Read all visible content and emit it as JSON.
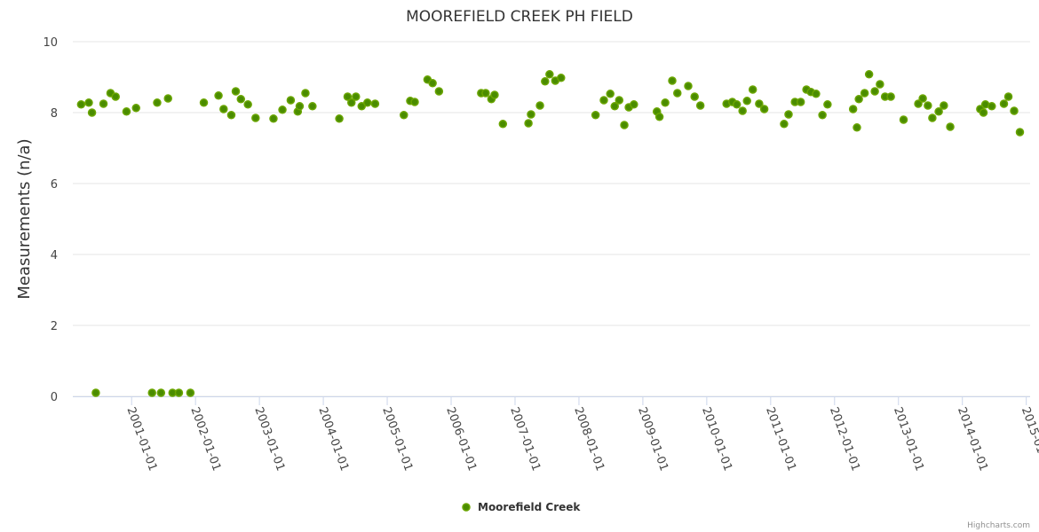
{
  "chart_data": {
    "type": "scatter",
    "title": "MOOREFIELD CREEK PH FIELD",
    "xlabel": "",
    "ylabel": "Measurements (n/a)",
    "ylim": [
      0,
      10
    ],
    "xlim": [
      2000.08,
      2015.06
    ],
    "x_units": "decimal year",
    "yticks": [
      0,
      2,
      4,
      6,
      8,
      10
    ],
    "xticks": [
      {
        "value": 2001,
        "label": "2001-01-01"
      },
      {
        "value": 2002,
        "label": "2002-01-01"
      },
      {
        "value": 2003,
        "label": "2003-01-01"
      },
      {
        "value": 2004,
        "label": "2004-01-01"
      },
      {
        "value": 2005,
        "label": "2005-01-01"
      },
      {
        "value": 2006,
        "label": "2006-01-01"
      },
      {
        "value": 2007,
        "label": "2007-01-01"
      },
      {
        "value": 2008,
        "label": "2008-01-01"
      },
      {
        "value": 2009,
        "label": "2009-01-01"
      },
      {
        "value": 2010,
        "label": "2010-01-01"
      },
      {
        "value": 2011,
        "label": "2011-01-01"
      },
      {
        "value": 2012,
        "label": "2012-01-01"
      },
      {
        "value": 2013,
        "label": "2013-01-01"
      },
      {
        "value": 2014,
        "label": "2014-01-01"
      },
      {
        "value": 2015,
        "label": "2015-01-01"
      }
    ],
    "grid": true,
    "legend_position": "bottom-center",
    "credits": "Highcharts.com",
    "series": [
      {
        "name": "Moorefield Creek",
        "color": "#6aa500",
        "fill": "#4a8c00",
        "points": [
          [
            2000.21,
            8.23
          ],
          [
            2000.33,
            8.28
          ],
          [
            2000.38,
            8.0
          ],
          [
            2000.44,
            0.1
          ],
          [
            2000.56,
            8.25
          ],
          [
            2000.67,
            8.55
          ],
          [
            2000.75,
            8.45
          ],
          [
            2000.92,
            8.03
          ],
          [
            2001.07,
            8.13
          ],
          [
            2001.32,
            0.1
          ],
          [
            2001.4,
            8.28
          ],
          [
            2001.46,
            0.1
          ],
          [
            2001.57,
            8.4
          ],
          [
            2001.64,
            0.1
          ],
          [
            2001.74,
            0.1
          ],
          [
            2001.92,
            0.1
          ],
          [
            2002.13,
            8.28
          ],
          [
            2002.36,
            8.48
          ],
          [
            2002.44,
            8.1
          ],
          [
            2002.56,
            7.93
          ],
          [
            2002.63,
            8.6
          ],
          [
            2002.71,
            8.38
          ],
          [
            2002.82,
            8.23
          ],
          [
            2002.94,
            7.85
          ],
          [
            2003.22,
            7.83
          ],
          [
            2003.36,
            8.08
          ],
          [
            2003.49,
            8.35
          ],
          [
            2003.6,
            8.03
          ],
          [
            2003.63,
            8.18
          ],
          [
            2003.72,
            8.55
          ],
          [
            2003.83,
            8.18
          ],
          [
            2004.25,
            7.83
          ],
          [
            2004.38,
            8.45
          ],
          [
            2004.44,
            8.28
          ],
          [
            2004.51,
            8.45
          ],
          [
            2004.6,
            8.18
          ],
          [
            2004.69,
            8.28
          ],
          [
            2004.81,
            8.25
          ],
          [
            2005.26,
            7.93
          ],
          [
            2005.36,
            8.33
          ],
          [
            2005.43,
            8.3
          ],
          [
            2005.63,
            8.93
          ],
          [
            2005.71,
            8.83
          ],
          [
            2005.81,
            8.6
          ],
          [
            2006.47,
            8.55
          ],
          [
            2006.54,
            8.55
          ],
          [
            2006.63,
            8.38
          ],
          [
            2006.68,
            8.5
          ],
          [
            2006.81,
            7.68
          ],
          [
            2007.21,
            7.7
          ],
          [
            2007.25,
            7.95
          ],
          [
            2007.39,
            8.2
          ],
          [
            2007.47,
            8.88
          ],
          [
            2007.54,
            9.08
          ],
          [
            2007.63,
            8.9
          ],
          [
            2007.72,
            8.98
          ],
          [
            2008.26,
            7.93
          ],
          [
            2008.39,
            8.35
          ],
          [
            2008.49,
            8.53
          ],
          [
            2008.56,
            8.18
          ],
          [
            2008.63,
            8.35
          ],
          [
            2008.71,
            7.65
          ],
          [
            2008.78,
            8.15
          ],
          [
            2008.86,
            8.23
          ],
          [
            2009.22,
            8.03
          ],
          [
            2009.26,
            7.88
          ],
          [
            2009.35,
            8.28
          ],
          [
            2009.46,
            8.9
          ],
          [
            2009.54,
            8.55
          ],
          [
            2009.71,
            8.75
          ],
          [
            2009.81,
            8.45
          ],
          [
            2009.9,
            8.2
          ],
          [
            2010.31,
            8.25
          ],
          [
            2010.4,
            8.3
          ],
          [
            2010.47,
            8.23
          ],
          [
            2010.56,
            8.05
          ],
          [
            2010.63,
            8.33
          ],
          [
            2010.72,
            8.65
          ],
          [
            2010.82,
            8.25
          ],
          [
            2010.9,
            8.1
          ],
          [
            2011.21,
            7.68
          ],
          [
            2011.28,
            7.95
          ],
          [
            2011.38,
            8.3
          ],
          [
            2011.47,
            8.3
          ],
          [
            2011.56,
            8.65
          ],
          [
            2011.63,
            8.58
          ],
          [
            2011.71,
            8.53
          ],
          [
            2011.81,
            7.93
          ],
          [
            2011.89,
            8.23
          ],
          [
            2012.29,
            8.1
          ],
          [
            2012.35,
            7.58
          ],
          [
            2012.38,
            8.38
          ],
          [
            2012.47,
            8.55
          ],
          [
            2012.54,
            9.08
          ],
          [
            2012.63,
            8.6
          ],
          [
            2012.71,
            8.8
          ],
          [
            2012.79,
            8.45
          ],
          [
            2012.88,
            8.45
          ],
          [
            2013.08,
            7.8
          ],
          [
            2013.31,
            8.25
          ],
          [
            2013.38,
            8.4
          ],
          [
            2013.46,
            8.2
          ],
          [
            2013.53,
            7.85
          ],
          [
            2013.63,
            8.03
          ],
          [
            2013.71,
            8.2
          ],
          [
            2013.81,
            7.6
          ],
          [
            2014.28,
            8.1
          ],
          [
            2014.33,
            8.0
          ],
          [
            2014.36,
            8.23
          ],
          [
            2014.46,
            8.18
          ],
          [
            2014.65,
            8.25
          ],
          [
            2014.72,
            8.45
          ],
          [
            2014.81,
            8.05
          ],
          [
            2014.9,
            7.45
          ]
        ]
      }
    ]
  }
}
